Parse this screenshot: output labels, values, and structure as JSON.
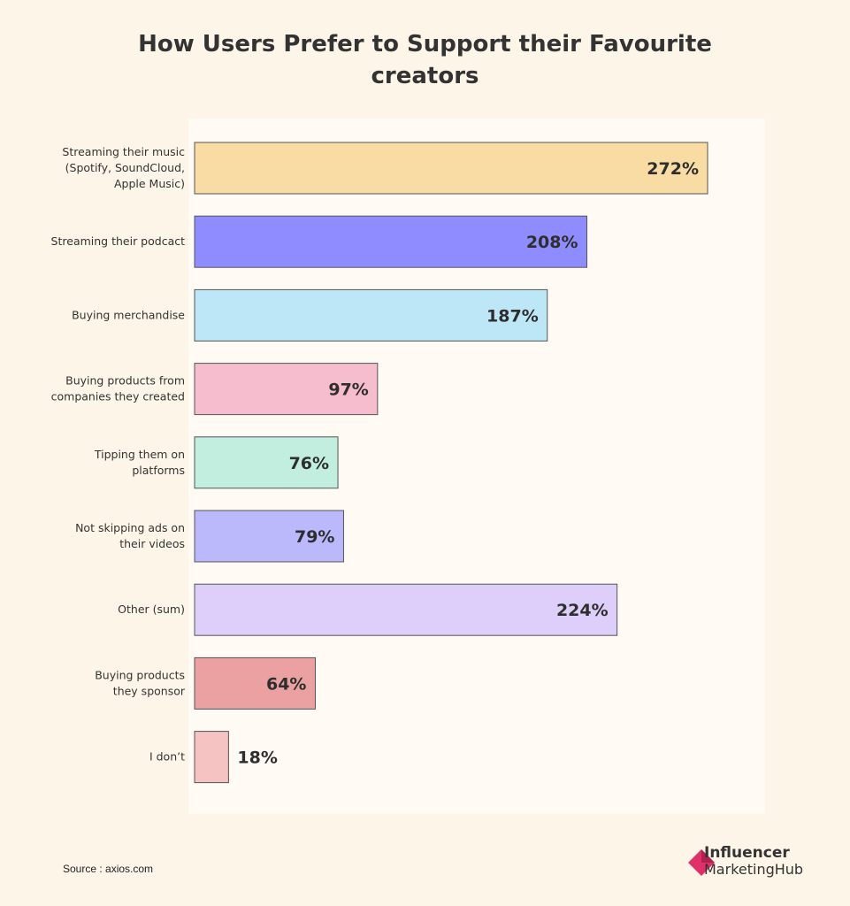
{
  "chart_data": {
    "type": "bar",
    "orientation": "horizontal",
    "title_lines": [
      "How Users Prefer to Support their Favourite",
      "creators"
    ],
    "categories": [
      [
        "Streaming their music",
        "(Spotify, SoundCloud,",
        "Apple Music)"
      ],
      [
        "Streaming their podcact"
      ],
      [
        "Buying merchandise"
      ],
      [
        "Buying products from",
        "companies they created"
      ],
      [
        "Tipping them on",
        "platforms"
      ],
      [
        "Not skipping ads on",
        "their videos"
      ],
      [
        "Other (sum)"
      ],
      [
        "Buying products",
        "they sponsor"
      ],
      [
        "I don’t"
      ]
    ],
    "values": [
      272,
      208,
      187,
      97,
      76,
      79,
      224,
      64,
      18
    ],
    "value_labels": [
      "272%",
      "208%",
      "187%",
      "97%",
      "76%",
      "79%",
      "224%",
      "64%",
      "18%"
    ],
    "colors": [
      "#f8dca4",
      "#8f8cff",
      "#bde6f7",
      "#f5bdce",
      "#c1eedf",
      "#bbb8fb",
      "#decefa",
      "#eba1a1",
      "#f5c3c1"
    ],
    "xlim": [
      0,
      300
    ],
    "grid": false,
    "legend": "none"
  },
  "source": "Source : axios.com",
  "brand": {
    "line1": "Influencer",
    "line2": "MarketingHub",
    "colors": [
      "#e0306a",
      "#b0214f"
    ]
  }
}
